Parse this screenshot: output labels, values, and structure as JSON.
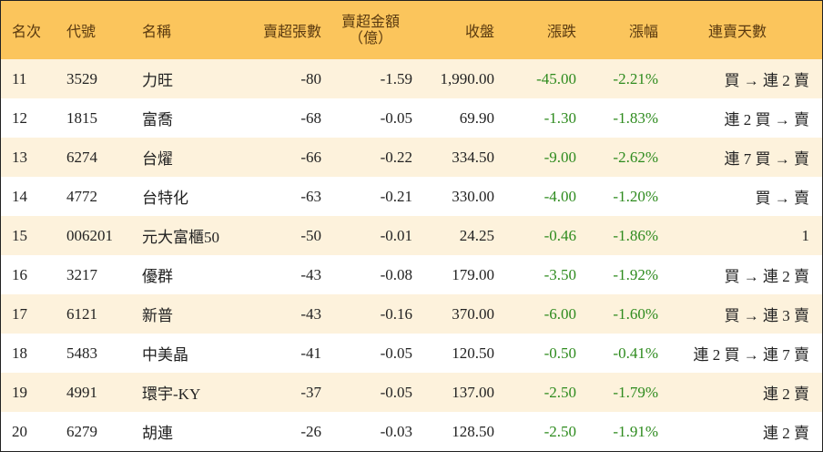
{
  "table": {
    "header": [
      "名次",
      "代號",
      "名稱",
      "賣超張數",
      [
        "賣超金額",
        "（億）"
      ],
      "收盤",
      "漲跌",
      "漲幅",
      "連賣天數"
    ],
    "rows": [
      [
        "11",
        "3529",
        "力旺",
        "-80",
        "-1.59",
        "1,990.00",
        "-45.00",
        "-2.21%",
        "買 → 連 2 賣"
      ],
      [
        "12",
        "1815",
        "富喬",
        "-68",
        "-0.05",
        "69.90",
        "-1.30",
        "-1.83%",
        "連 2 買 → 賣"
      ],
      [
        "13",
        "6274",
        "台燿",
        "-66",
        "-0.22",
        "334.50",
        "-9.00",
        "-2.62%",
        "連 7 買 → 賣"
      ],
      [
        "14",
        "4772",
        "台特化",
        "-63",
        "-0.21",
        "330.00",
        "-4.00",
        "-1.20%",
        "買 → 賣"
      ],
      [
        "15",
        "006201",
        "元大富櫃50",
        "-50",
        "-0.01",
        "24.25",
        "-0.46",
        "-1.86%",
        "1"
      ],
      [
        "16",
        "3217",
        "優群",
        "-43",
        "-0.08",
        "179.00",
        "-3.50",
        "-1.92%",
        "買 → 連 2 賣"
      ],
      [
        "17",
        "6121",
        "新普",
        "-43",
        "-0.16",
        "370.00",
        "-6.00",
        "-1.60%",
        "買 → 連 3 賣"
      ],
      [
        "18",
        "5483",
        "中美晶",
        "-41",
        "-0.05",
        "120.50",
        "-0.50",
        "-0.41%",
        "連 2 買 → 連 7 賣"
      ],
      [
        "19",
        "4991",
        "環宇-KY",
        "-37",
        "-0.05",
        "137.00",
        "-2.50",
        "-1.79%",
        "連 2 賣"
      ],
      [
        "20",
        "6279",
        "胡連",
        "-26",
        "-0.03",
        "128.50",
        "-2.50",
        "-1.91%",
        "連 2 賣"
      ]
    ]
  }
}
